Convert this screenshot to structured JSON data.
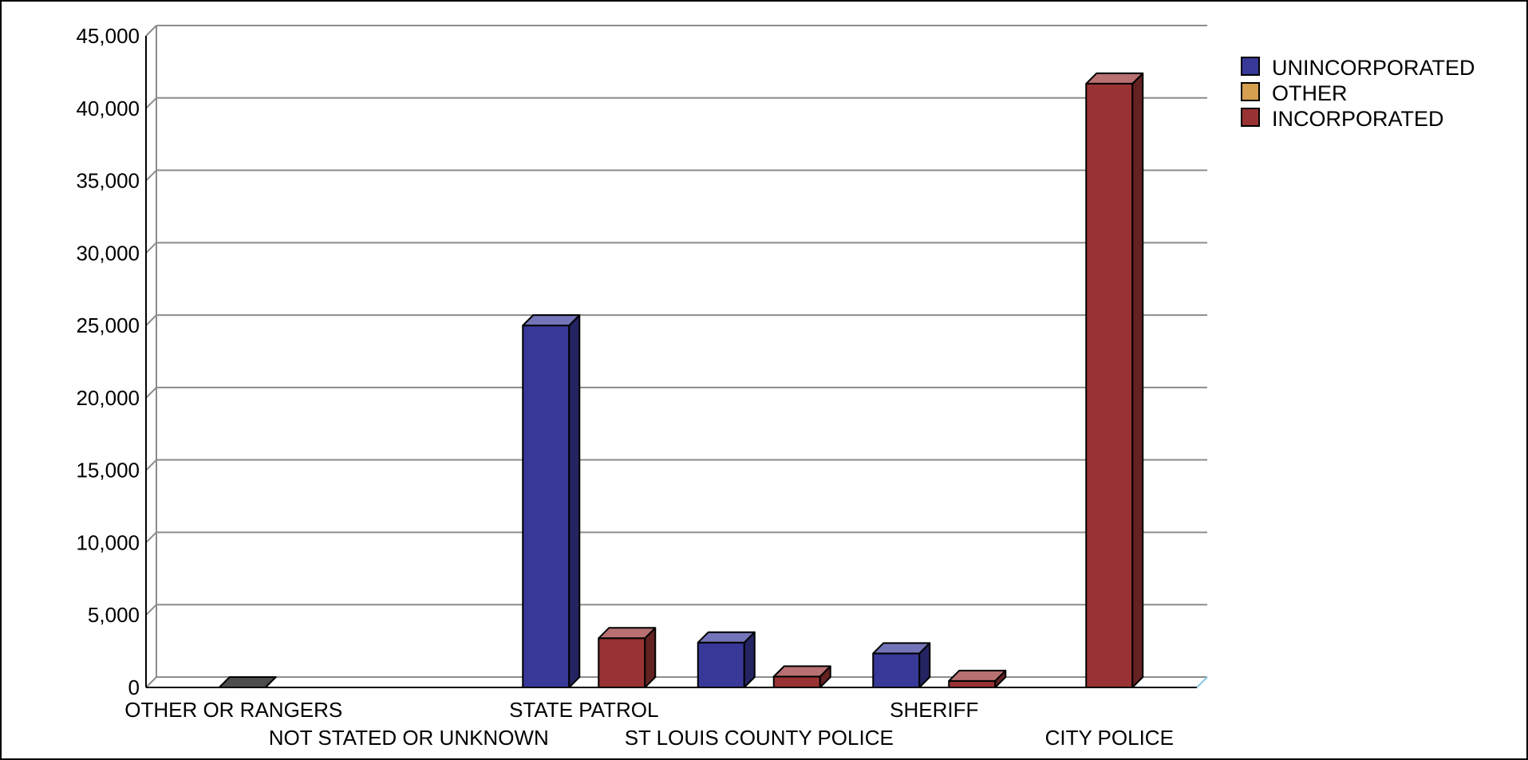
{
  "chart_data": {
    "type": "bar",
    "categories": [
      "OTHER OR RANGERS",
      "NOT STATED OR UNKNOWN",
      "STATE PATROL",
      "ST LOUIS COUNTY POLICE",
      "SHERIFF",
      "CITY POLICE"
    ],
    "series": [
      {
        "name": "UNINCORPORATED",
        "color": "#383899",
        "values": [
          0,
          0,
          25000,
          3100,
          2350,
          0
        ]
      },
      {
        "name": "OTHER",
        "color": "#d4a050",
        "values": [
          0,
          0,
          0,
          0,
          0,
          0
        ]
      },
      {
        "name": "INCORPORATED",
        "color": "#993333",
        "values": [
          0,
          0,
          3400,
          750,
          450,
          41700
        ]
      }
    ],
    "ylim": [
      0,
      45000
    ],
    "yticks": [
      "0",
      "5,000",
      "10,000",
      "15,000",
      "20,000",
      "25,000",
      "30,000",
      "35,000",
      "40,000",
      "45,000"
    ],
    "grid": true,
    "legend_position": "top-right",
    "title": "",
    "xlabel": "",
    "ylabel": ""
  }
}
